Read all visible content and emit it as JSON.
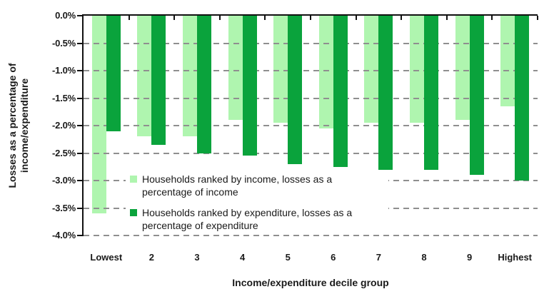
{
  "chart_data": {
    "type": "bar",
    "title": "",
    "categories": [
      "Lowest",
      "2",
      "3",
      "4",
      "5",
      "6",
      "7",
      "8",
      "9",
      "Highest"
    ],
    "series": [
      {
        "key": "income",
        "name": "Households ranked by income, losses as a percentage of income",
        "color": "#AFF5AF",
        "values": [
          -3.6,
          -2.2,
          -2.2,
          -1.9,
          -1.95,
          -2.05,
          -1.95,
          -1.95,
          -1.9,
          -1.65
        ]
      },
      {
        "key": "expenditure",
        "name": "Households ranked by expenditure, losses as a percentage of expenditure",
        "color": "#0AA33C",
        "values": [
          -2.1,
          -2.35,
          -2.5,
          -2.55,
          -2.7,
          -2.75,
          -2.8,
          -2.8,
          -2.9,
          -3.0
        ]
      }
    ],
    "xlabel": "Income/expenditure decile group",
    "ylabel": "Losses as a percentage of income/expenditure",
    "ylabel_lines": [
      "Losses as a percentage of",
      "income/expenditure"
    ],
    "ylim": [
      -4.0,
      0.0
    ],
    "ytick_step": 0.5,
    "ytick_labels": [
      "0.0%",
      "-0.5%",
      "-1.0%",
      "-1.5%",
      "-2.0%",
      "-2.5%",
      "-3.0%",
      "-3.5%",
      "-4.0%"
    ],
    "grid": "horizontal-dashed",
    "legend_position": "inside-bottom-left"
  },
  "colors": {
    "background": "#FFFFFF",
    "axis": "#111111",
    "gridline": "#8F8F8F",
    "text": "#1A1A1A",
    "series_income": "#AFF5AF",
    "series_expenditure": "#0AA33C"
  }
}
